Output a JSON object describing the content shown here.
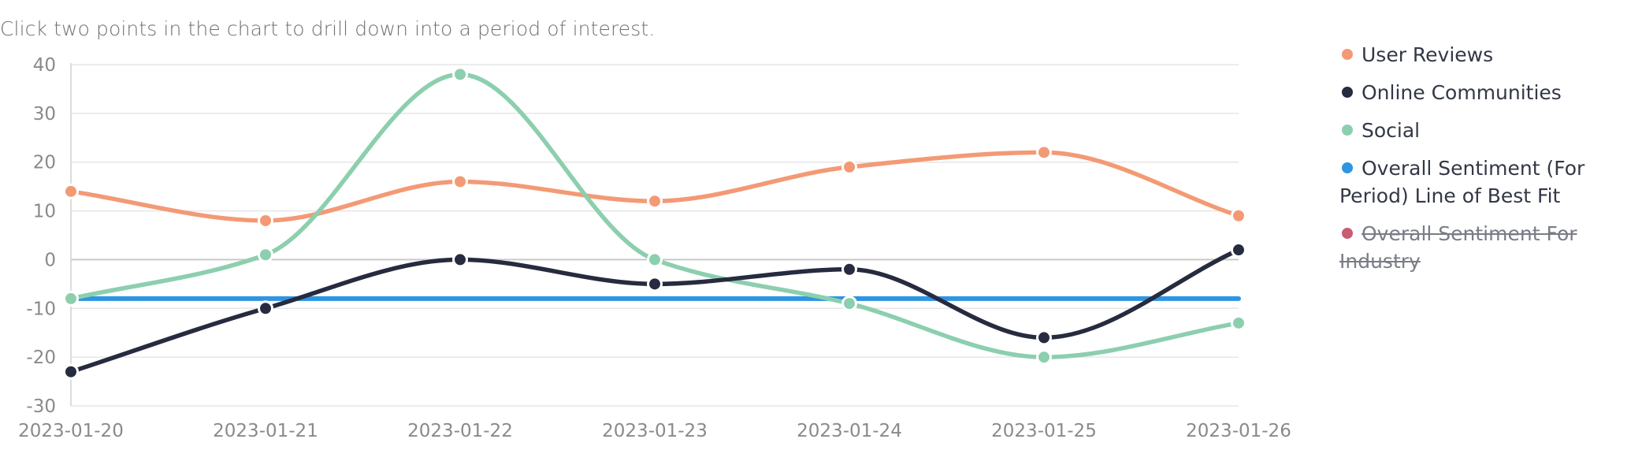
{
  "instruction": "Click two points in the chart to drill down into a period of interest.",
  "legend": {
    "items": [
      {
        "label": "User Reviews",
        "color": "#f39a75",
        "enabled": true
      },
      {
        "label": "Online Communities",
        "color": "#262b3f",
        "enabled": true
      },
      {
        "label": "Social",
        "color": "#8ccfae",
        "enabled": true
      },
      {
        "label": "Overall Sentiment (For Period) Line of Best Fit",
        "color": "#2e95e2",
        "enabled": true
      },
      {
        "label": "Overall Sentiment For Industry",
        "color": "#c85c74",
        "enabled": false
      }
    ]
  },
  "chart_data": {
    "type": "line",
    "title": "",
    "xlabel": "",
    "ylabel": "",
    "categories": [
      "2023-01-20",
      "2023-01-21",
      "2023-01-22",
      "2023-01-23",
      "2023-01-24",
      "2023-01-25",
      "2023-01-26"
    ],
    "yticks": [
      40,
      30,
      20,
      10,
      0,
      -10,
      -20,
      -30
    ],
    "ylim": [
      -30,
      40
    ],
    "grid": true,
    "legend_position": "right",
    "series": [
      {
        "name": "User Reviews",
        "color": "#f39a75",
        "smooth": true,
        "markers": true,
        "values": [
          14,
          8,
          16,
          12,
          19,
          22,
          9
        ]
      },
      {
        "name": "Online Communities",
        "color": "#262b3f",
        "smooth": true,
        "markers": true,
        "values": [
          -23,
          -10,
          0,
          -5,
          -2,
          -16,
          2
        ]
      },
      {
        "name": "Social",
        "color": "#8ccfae",
        "smooth": true,
        "markers": true,
        "values": [
          -8,
          1,
          38,
          0,
          -9,
          -20,
          -13
        ]
      },
      {
        "name": "Overall Sentiment (For Period) Line of Best Fit",
        "color": "#2e95e2",
        "smooth": false,
        "markers": false,
        "values": [
          -8,
          -8,
          -8,
          -8,
          -8,
          -8,
          -8
        ]
      }
    ]
  }
}
